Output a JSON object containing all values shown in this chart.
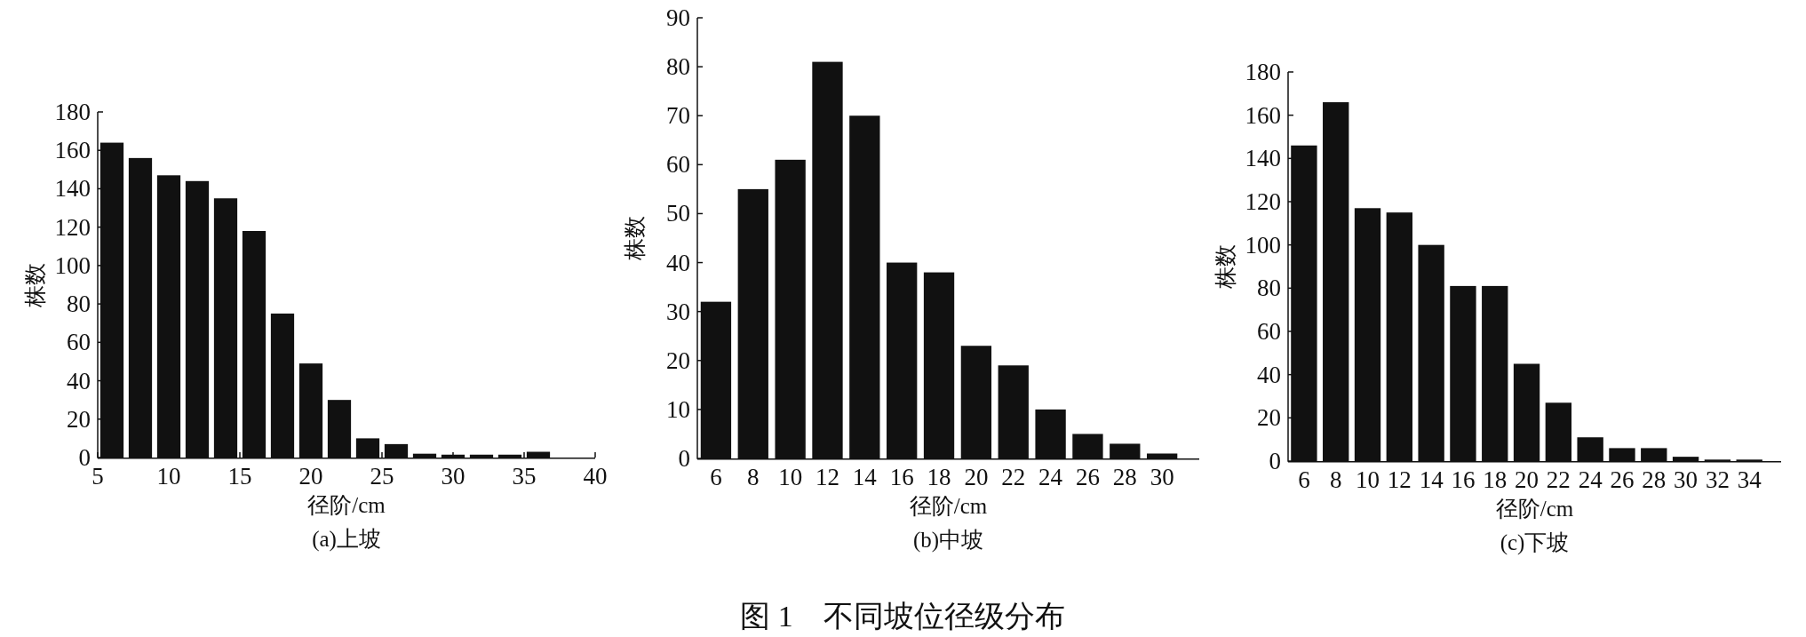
{
  "chart_data": [
    {
      "type": "bar",
      "title": "(a)上坡",
      "xlabel": "径阶/cm",
      "ylabel": "株数",
      "color": "#111111",
      "x": [
        6,
        8,
        10,
        12,
        14,
        16,
        18,
        20,
        22,
        24,
        26,
        28,
        30,
        32,
        34,
        36
      ],
      "values": [
        164,
        156,
        147,
        144,
        135,
        118,
        75,
        49,
        30,
        10,
        7,
        2,
        1.5,
        1.5,
        1.5,
        3
      ],
      "xlim": [
        5,
        40
      ],
      "xticks": [
        5,
        10,
        15,
        20,
        25,
        30,
        35,
        40
      ],
      "ylim": [
        0,
        180
      ],
      "yticks": [
        0,
        20,
        40,
        60,
        80,
        100,
        120,
        140,
        160,
        180
      ],
      "annotations": [
        "图 1　不同坡位径级分布"
      ]
    },
    {
      "type": "bar",
      "title": "(b)中坡",
      "xlabel": "径阶/cm",
      "ylabel": "株数",
      "color": "#111111",
      "categories": [
        "6",
        "8",
        "10",
        "12",
        "14",
        "16",
        "18",
        "20",
        "22",
        "24",
        "26",
        "28",
        "30"
      ],
      "values": [
        32,
        55,
        61,
        81,
        70,
        40,
        38,
        23,
        19,
        10,
        5,
        3,
        1
      ],
      "ylim": [
        0,
        90
      ],
      "yticks": [
        0,
        10,
        20,
        30,
        40,
        50,
        60,
        70,
        80,
        90
      ]
    },
    {
      "type": "bar",
      "title": "(c)下坡",
      "xlabel": "径阶/cm",
      "ylabel": "株数",
      "color": "#111111",
      "categories": [
        "6",
        "8",
        "10",
        "12",
        "14",
        "16",
        "18",
        "20",
        "22",
        "24",
        "26",
        "28",
        "30",
        "32",
        "34"
      ],
      "values": [
        146,
        166,
        117,
        115,
        100,
        81,
        81,
        45,
        27,
        11,
        6,
        6,
        2,
        0.7,
        0.7
      ],
      "ylim": [
        0,
        180
      ],
      "yticks": [
        0,
        20,
        40,
        60,
        80,
        100,
        120,
        140,
        160,
        180
      ]
    }
  ]
}
